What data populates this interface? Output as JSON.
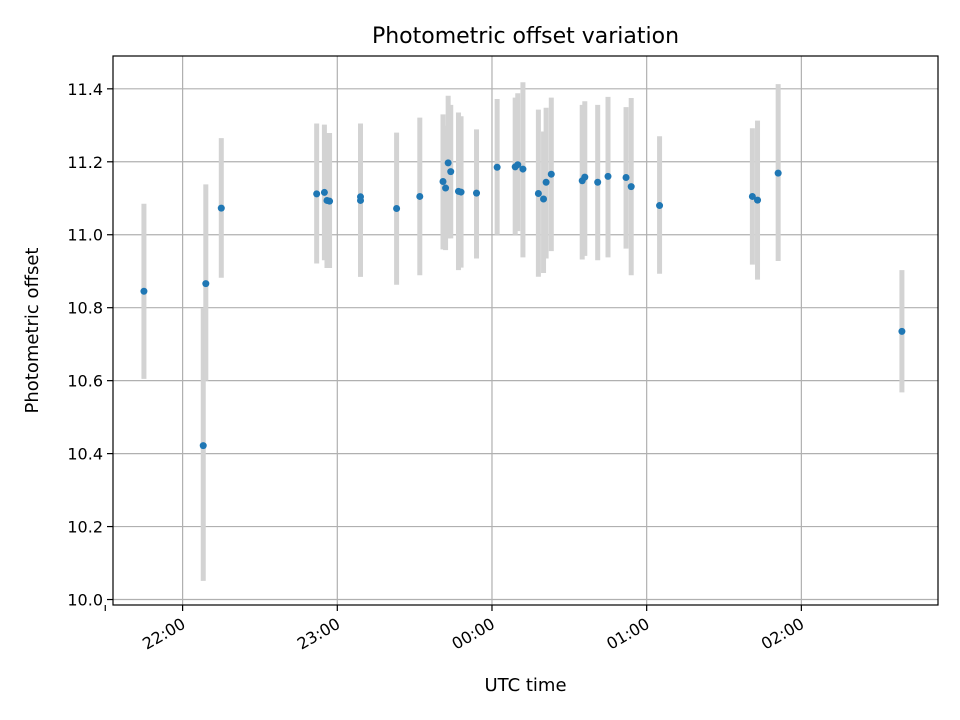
{
  "chart_data": {
    "type": "scatter",
    "title": "Photometric offset variation",
    "xlabel": "UTC time",
    "ylabel": "Photometric offset",
    "x_ticks": [
      "21:30",
      "22:00",
      "23:00",
      "00:00",
      "01:00",
      "02:00"
    ],
    "x_tick_labels": [
      "",
      "22:00",
      "23:00",
      "00:00",
      "01:00",
      "02:00"
    ],
    "y_ticks": [
      10.0,
      10.2,
      10.4,
      10.6,
      10.8,
      11.0,
      11.2,
      11.4
    ],
    "y_tick_labels": [
      "10.0",
      "10.2",
      "10.4",
      "10.6",
      "10.8",
      "11.0",
      "11.2",
      "11.4"
    ],
    "xlim": [
      "21:33",
      "02:53"
    ],
    "ylim": [
      9.985,
      11.49
    ],
    "grid": true,
    "colors": {
      "point": "#1f77b4",
      "errorbar": "#d3d3d3",
      "grid": "#b0b0b0"
    },
    "series": [
      {
        "x": [
          "21:45",
          "22:08",
          "22:09",
          "22:15",
          "22:52",
          "22:55",
          "22:56",
          "22:57",
          "23:09",
          "23:09",
          "23:23",
          "23:32",
          "23:41",
          "23:42",
          "23:43",
          "23:44",
          "23:47",
          "23:48",
          "23:54",
          "24:02",
          "24:09",
          "24:10",
          "24:12",
          "24:18",
          "24:20",
          "24:21",
          "24:23",
          "24:35",
          "24:36",
          "24:41",
          "24:45",
          "24:52",
          "24:54",
          "25:05",
          "25:41",
          "25:43",
          "25:51",
          "26:39"
        ],
        "y": [
          10.845,
          10.422,
          10.866,
          11.073,
          11.112,
          11.116,
          11.094,
          11.092,
          11.104,
          11.094,
          11.072,
          11.105,
          11.146,
          11.128,
          11.197,
          11.173,
          11.119,
          11.117,
          11.114,
          11.185,
          11.186,
          11.192,
          11.18,
          11.113,
          11.098,
          11.144,
          11.166,
          11.148,
          11.158,
          11.144,
          11.16,
          11.157,
          11.132,
          11.08,
          11.105,
          11.095,
          11.169,
          10.735
        ],
        "err_low": [
          10.605,
          10.051,
          10.6,
          10.882,
          10.921,
          10.93,
          10.909,
          10.909,
          10.885,
          10.885,
          10.863,
          10.889,
          10.96,
          10.958,
          10.99,
          10.99,
          10.903,
          10.91,
          10.935,
          11.0,
          11.0,
          11.01,
          10.938,
          10.885,
          10.895,
          10.935,
          10.955,
          10.932,
          10.942,
          10.93,
          10.938,
          10.962,
          10.889,
          10.893,
          10.918,
          10.877,
          10.928,
          10.568
        ],
        "err_high": [
          11.085,
          10.798,
          11.138,
          11.265,
          11.305,
          11.302,
          11.279,
          11.279,
          11.305,
          11.305,
          11.28,
          11.321,
          11.33,
          11.299,
          11.381,
          11.356,
          11.335,
          11.325,
          11.289,
          11.372,
          11.376,
          11.388,
          11.418,
          11.343,
          11.283,
          11.348,
          11.376,
          11.356,
          11.366,
          11.356,
          11.378,
          11.35,
          11.375,
          11.27,
          11.292,
          11.313,
          11.413,
          10.903
        ]
      }
    ]
  }
}
